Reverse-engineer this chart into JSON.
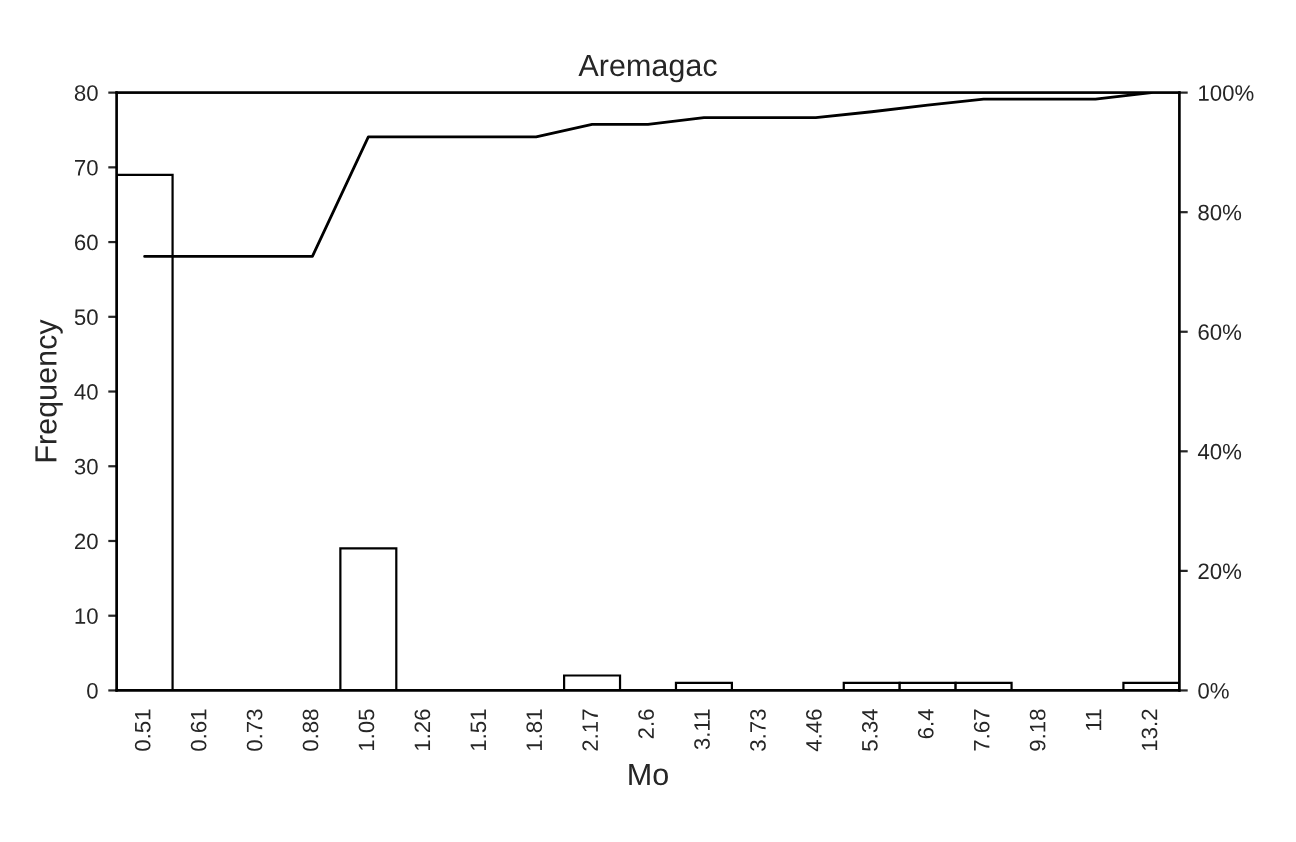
{
  "chart_data": {
    "type": "bar",
    "title": "Aremagac",
    "xlabel": "Mo",
    "ylabel": "Frequency",
    "categories": [
      "0.51",
      "0.61",
      "0.73",
      "0.88",
      "1.05",
      "1.26",
      "1.51",
      "1.81",
      "2.17",
      "2.6",
      "3.11",
      "3.73",
      "4.46",
      "5.34",
      "6.4",
      "7.67",
      "9.18",
      "11",
      "13.2"
    ],
    "series": [
      {
        "color": "#ffffff",
        "values": [
          69,
          0,
          0,
          0,
          19,
          0,
          0,
          0,
          2,
          0,
          1,
          0,
          0,
          1,
          1,
          1,
          0,
          0,
          1
        ]
      },
      {
        "type": "line",
        "axis": "y2",
        "color": "#000000",
        "values": [
          72.6,
          72.6,
          72.6,
          72.6,
          92.6,
          92.6,
          92.6,
          92.6,
          94.7,
          94.7,
          95.8,
          95.8,
          95.8,
          96.8,
          97.9,
          98.9,
          98.9,
          98.9,
          100
        ]
      }
    ],
    "ylim": [
      0,
      80
    ],
    "yticks": [
      0,
      10,
      20,
      30,
      40,
      50,
      60,
      70,
      80
    ],
    "y2lim": [
      0,
      100
    ],
    "y2ticks": [
      {
        "value": 0,
        "label": "0%"
      },
      {
        "value": 20,
        "label": "20%"
      },
      {
        "value": 40,
        "label": "40%"
      },
      {
        "value": 60,
        "label": "60%"
      },
      {
        "value": 80,
        "label": "80%"
      },
      {
        "value": 100,
        "label": "100%"
      }
    ],
    "grid": false,
    "legend": false
  }
}
